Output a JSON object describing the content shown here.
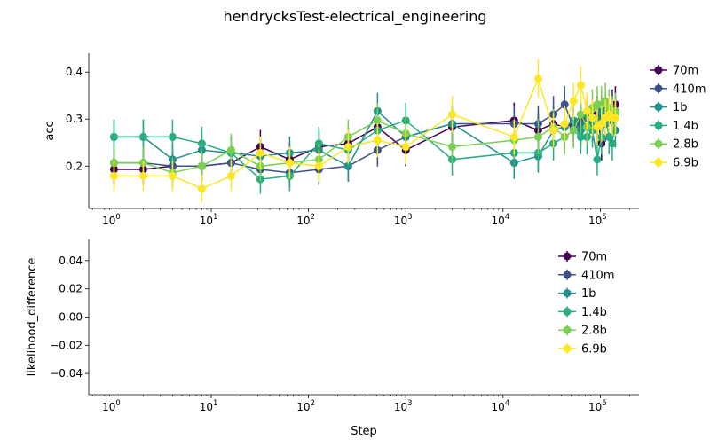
{
  "figure": {
    "title": "hendrycksTest-electrical_engineering",
    "xlabel": "Step"
  },
  "chart_data": [
    {
      "type": "line",
      "ylabel": "acc",
      "xscale": "log",
      "xlim": [
        0.55,
        250000
      ],
      "ylim": [
        0.11,
        0.44
      ],
      "xticks": [
        {
          "v": 1,
          "e": "0"
        },
        {
          "v": 10,
          "e": "1"
        },
        {
          "v": 100,
          "e": "2"
        },
        {
          "v": 1000,
          "e": "3"
        },
        {
          "v": 10000,
          "e": "4"
        },
        {
          "v": 100000,
          "e": "5"
        }
      ],
      "yticks": [
        {
          "v": 0.2,
          "label": "0.2"
        },
        {
          "v": 0.3,
          "label": "0.3"
        },
        {
          "v": 0.4,
          "label": "0.4"
        }
      ],
      "legend_position": "outside-right",
      "series": [
        {
          "name": "70m",
          "color": "#440154",
          "x": [
            1,
            2,
            4,
            8,
            16,
            32,
            64,
            128,
            256,
            512,
            1000,
            3000,
            13000,
            23000,
            33000,
            43000,
            53000,
            63000,
            73000,
            83000,
            93000,
            103000,
            113000,
            123000,
            133000,
            143000
          ],
          "y": [
            0.193,
            0.193,
            0.2,
            0.2,
            0.207,
            0.241,
            0.214,
            0.241,
            0.248,
            0.283,
            0.234,
            0.283,
            0.297,
            0.276,
            0.29,
            0.283,
            0.29,
            0.297,
            0.303,
            0.29,
            0.31,
            0.248,
            0.317,
            0.31,
            0.324,
            0.331
          ],
          "err": [
            0.033,
            0.033,
            0.033,
            0.033,
            0.034,
            0.036,
            0.034,
            0.036,
            0.036,
            0.038,
            0.035,
            0.038,
            0.038,
            0.037,
            0.038,
            0.038,
            0.038,
            0.038,
            0.038,
            0.038,
            0.039,
            0.036,
            0.039,
            0.039,
            0.039,
            0.039
          ]
        },
        {
          "name": "410m",
          "color": "#3b528b",
          "x": [
            1,
            2,
            4,
            8,
            16,
            32,
            64,
            128,
            256,
            512,
            1000,
            3000,
            13000,
            23000,
            33000,
            43000,
            53000,
            63000,
            73000,
            83000,
            93000,
            103000,
            113000,
            123000,
            133000,
            143000
          ],
          "y": [
            0.207,
            0.207,
            0.2,
            0.2,
            0.207,
            0.193,
            0.186,
            0.193,
            0.2,
            0.234,
            0.262,
            0.29,
            0.29,
            0.29,
            0.31,
            0.331,
            0.283,
            0.29,
            0.303,
            0.297,
            0.283,
            0.31,
            0.29,
            0.303,
            0.324,
            0.31
          ],
          "err": [
            0.034,
            0.034,
            0.033,
            0.033,
            0.034,
            0.033,
            0.032,
            0.033,
            0.033,
            0.035,
            0.037,
            0.038,
            0.038,
            0.038,
            0.039,
            0.039,
            0.038,
            0.038,
            0.038,
            0.038,
            0.038,
            0.039,
            0.038,
            0.038,
            0.039,
            0.039
          ]
        },
        {
          "name": "1b",
          "color": "#21918c",
          "x": [
            1,
            2,
            4,
            8,
            16,
            32,
            64,
            128,
            256,
            512,
            1000,
            3000,
            13000,
            23000,
            33000,
            43000,
            53000,
            63000,
            73000,
            83000,
            93000,
            103000,
            113000,
            123000,
            133000,
            143000
          ],
          "y": [
            0.262,
            0.262,
            0.214,
            0.234,
            0.228,
            0.221,
            0.228,
            0.234,
            0.2,
            0.317,
            0.262,
            0.29,
            0.207,
            0.221,
            0.276,
            0.283,
            0.297,
            0.276,
            0.31,
            0.29,
            0.297,
            0.317,
            0.303,
            0.297,
            0.31,
            0.276
          ],
          "err": [
            0.037,
            0.037,
            0.034,
            0.035,
            0.035,
            0.035,
            0.035,
            0.035,
            0.033,
            0.039,
            0.037,
            0.038,
            0.034,
            0.035,
            0.037,
            0.038,
            0.038,
            0.037,
            0.039,
            0.038,
            0.038,
            0.039,
            0.038,
            0.038,
            0.039,
            0.037
          ]
        },
        {
          "name": "1.4b",
          "color": "#27ad81",
          "x": [
            1,
            2,
            4,
            8,
            16,
            32,
            64,
            128,
            256,
            512,
            1000,
            3000,
            13000,
            23000,
            33000,
            43000,
            53000,
            63000,
            73000,
            83000,
            93000,
            103000,
            113000,
            123000,
            133000,
            143000
          ],
          "y": [
            0.262,
            0.262,
            0.262,
            0.248,
            0.228,
            0.172,
            0.179,
            0.248,
            0.234,
            0.276,
            0.297,
            0.214,
            0.228,
            0.228,
            0.248,
            0.262,
            0.276,
            0.262,
            0.262,
            0.276,
            0.214,
            0.262,
            0.303,
            0.262,
            0.248,
            0.31
          ],
          "err": [
            0.037,
            0.037,
            0.037,
            0.036,
            0.035,
            0.031,
            0.032,
            0.036,
            0.035,
            0.037,
            0.038,
            0.034,
            0.035,
            0.035,
            0.036,
            0.037,
            0.037,
            0.037,
            0.037,
            0.037,
            0.034,
            0.037,
            0.038,
            0.037,
            0.036,
            0.039
          ]
        },
        {
          "name": "2.8b",
          "color": "#7ad151",
          "x": [
            1,
            2,
            4,
            8,
            16,
            32,
            64,
            128,
            256,
            512,
            1000,
            3000,
            13000,
            23000,
            33000,
            43000,
            53000,
            63000,
            73000,
            83000,
            93000,
            103000,
            113000,
            123000,
            133000,
            143000
          ],
          "y": [
            0.207,
            0.207,
            0.186,
            0.2,
            0.234,
            0.2,
            0.207,
            0.214,
            0.262,
            0.297,
            0.269,
            0.241,
            0.255,
            0.262,
            0.283,
            0.262,
            0.276,
            0.31,
            0.283,
            0.324,
            0.331,
            0.331,
            0.338,
            0.324,
            0.31,
            0.317
          ],
          "err": [
            0.034,
            0.034,
            0.032,
            0.033,
            0.035,
            0.033,
            0.034,
            0.034,
            0.037,
            0.038,
            0.037,
            0.036,
            0.036,
            0.037,
            0.038,
            0.037,
            0.037,
            0.039,
            0.038,
            0.039,
            0.039,
            0.039,
            0.039,
            0.039,
            0.039,
            0.039
          ]
        },
        {
          "name": "6.9b",
          "color": "#fde725",
          "x": [
            1,
            2,
            4,
            8,
            16,
            32,
            64,
            128,
            256,
            512,
            1000,
            3000,
            13000,
            23000,
            33000,
            43000,
            53000,
            63000,
            73000,
            83000,
            93000,
            103000,
            113000,
            123000,
            133000,
            143000
          ],
          "y": [
            0.179,
            0.179,
            0.179,
            0.152,
            0.179,
            0.228,
            0.207,
            0.2,
            0.241,
            0.255,
            0.241,
            0.31,
            0.262,
            0.386,
            0.276,
            0.29,
            0.338,
            0.372,
            0.317,
            0.303,
            0.283,
            0.29,
            0.303,
            0.31,
            0.303,
            0.303
          ],
          "err": [
            0.032,
            0.032,
            0.032,
            0.03,
            0.032,
            0.035,
            0.034,
            0.033,
            0.036,
            0.036,
            0.036,
            0.039,
            0.037,
            0.041,
            0.037,
            0.038,
            0.039,
            0.04,
            0.039,
            0.038,
            0.038,
            0.038,
            0.038,
            0.039,
            0.038,
            0.038
          ]
        }
      ]
    },
    {
      "type": "line",
      "ylabel": "likelihood_difference",
      "xscale": "log",
      "xlim": [
        0.55,
        250000
      ],
      "ylim": [
        -0.055,
        0.055
      ],
      "xticks": [
        {
          "v": 1,
          "e": "0"
        },
        {
          "v": 10,
          "e": "1"
        },
        {
          "v": 100,
          "e": "2"
        },
        {
          "v": 1000,
          "e": "3"
        },
        {
          "v": 10000,
          "e": "4"
        },
        {
          "v": 100000,
          "e": "5"
        }
      ],
      "yticks": [
        {
          "v": -0.04,
          "label": "−0.04"
        },
        {
          "v": -0.02,
          "label": "−0.02"
        },
        {
          "v": 0,
          "label": "0.00"
        },
        {
          "v": 0.02,
          "label": "0.02"
        },
        {
          "v": 0.04,
          "label": "0.04"
        }
      ],
      "legend_position": "upper-right",
      "series": [
        {
          "name": "70m",
          "color": "#440154",
          "x": [],
          "y": [],
          "err": []
        },
        {
          "name": "410m",
          "color": "#3b528b",
          "x": [],
          "y": [],
          "err": []
        },
        {
          "name": "1b",
          "color": "#21918c",
          "x": [],
          "y": [],
          "err": []
        },
        {
          "name": "1.4b",
          "color": "#27ad81",
          "x": [],
          "y": [],
          "err": []
        },
        {
          "name": "2.8b",
          "color": "#7ad151",
          "x": [],
          "y": [],
          "err": []
        },
        {
          "name": "6.9b",
          "color": "#fde725",
          "x": [],
          "y": [],
          "err": []
        }
      ]
    }
  ]
}
